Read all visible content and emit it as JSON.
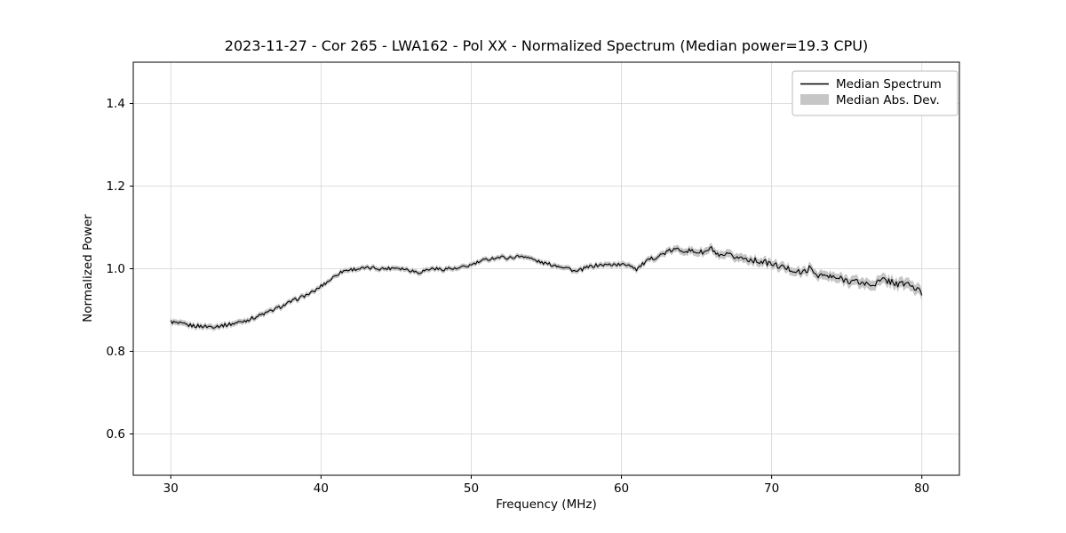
{
  "figure": {
    "background": "#ffffff"
  },
  "chart_data": {
    "type": "line",
    "title": "2023-11-27 - Cor 265 - LWA162 - Pol XX - Normalized Spectrum (Median power=19.3 CPU)",
    "xlabel": "Frequency (MHz)",
    "ylabel": "Normalized Power",
    "xlim": [
      27.5,
      82.5
    ],
    "ylim": [
      0.5,
      1.5
    ],
    "xticks": [
      30,
      40,
      50,
      60,
      70,
      80
    ],
    "yticks": [
      0.6,
      0.8,
      1.0,
      1.2,
      1.4
    ],
    "xtick_labels": [
      "30",
      "40",
      "50",
      "60",
      "70",
      "80"
    ],
    "ytick_labels": [
      "0.6",
      "0.8",
      "1.0",
      "1.2",
      "1.4"
    ],
    "grid": true,
    "legend": {
      "position": "upper right",
      "entries": [
        {
          "label": "Median Spectrum",
          "type": "line",
          "color": "#000000"
        },
        {
          "label": "Median Abs. Dev.",
          "type": "patch",
          "color": "#c6c6c6"
        }
      ]
    },
    "colors": {
      "line": "#000000",
      "band": "#c6c6c6",
      "grid": "#d4d4d4",
      "axes": "#000000",
      "legend_border": "#bbbbbb"
    },
    "noise_amplitude_ratio": 0.7,
    "series": [
      {
        "name": "Median Spectrum",
        "x": [
          30,
          30.5,
          31,
          31.5,
          32,
          32.5,
          33,
          33.5,
          34,
          34.5,
          35,
          35.5,
          36,
          36.5,
          37,
          37.5,
          38,
          38.5,
          39,
          39.5,
          40,
          40.5,
          41,
          41.5,
          42,
          42.5,
          43,
          43.5,
          44,
          44.5,
          45,
          45.5,
          46,
          46.5,
          47,
          47.5,
          48,
          48.5,
          49,
          49.5,
          50,
          50.5,
          51,
          51.5,
          52,
          52.5,
          53,
          53.5,
          54,
          54.5,
          55,
          55.5,
          56,
          56.5,
          57,
          57.5,
          58,
          58.5,
          59,
          59.5,
          60,
          60.5,
          61,
          61.5,
          62,
          62.5,
          63,
          63.5,
          64,
          64.5,
          65,
          65.5,
          66,
          66.5,
          67,
          67.5,
          68,
          68.5,
          69,
          69.5,
          70,
          70.5,
          71,
          71.5,
          72,
          72.5,
          73,
          73.5,
          74,
          74.5,
          75,
          75.5,
          76,
          76.5,
          77,
          77.5,
          78,
          78.5,
          79,
          79.5,
          80
        ],
        "y": [
          0.872,
          0.867,
          0.864,
          0.862,
          0.861,
          0.86,
          0.861,
          0.863,
          0.866,
          0.87,
          0.875,
          0.881,
          0.888,
          0.895,
          0.903,
          0.911,
          0.92,
          0.928,
          0.936,
          0.944,
          0.958,
          0.97,
          0.985,
          0.995,
          0.998,
          1.0,
          1.001,
          1.002,
          1.0,
          1.001,
          1.003,
          1.0,
          0.996,
          0.991,
          0.997,
          1.001,
          0.998,
          1.001,
          0.999,
          1.004,
          1.009,
          1.016,
          1.022,
          1.026,
          1.028,
          1.026,
          1.029,
          1.031,
          1.024,
          1.017,
          1.012,
          1.009,
          1.006,
          1.001,
          0.992,
          1.0,
          1.006,
          1.009,
          1.009,
          1.011,
          1.009,
          1.011,
          0.999,
          1.013,
          1.024,
          1.031,
          1.04,
          1.046,
          1.046,
          1.043,
          1.041,
          1.039,
          1.049,
          1.027,
          1.033,
          1.029,
          1.026,
          1.023,
          1.019,
          1.016,
          1.011,
          1.006,
          1.001,
          0.996,
          0.989,
          1.001,
          0.986,
          0.983,
          0.979,
          0.976,
          0.973,
          0.969,
          0.966,
          0.961,
          0.966,
          0.973,
          0.969,
          0.961,
          0.966,
          0.953,
          0.941
        ]
      }
    ],
    "band": {
      "name": "Median Abs. Dev.",
      "x": [
        30,
        40,
        55,
        62,
        65,
        68,
        72,
        76,
        80
      ],
      "halfwidth": [
        0.007,
        0.006,
        0.006,
        0.007,
        0.009,
        0.01,
        0.01,
        0.012,
        0.013
      ]
    }
  }
}
